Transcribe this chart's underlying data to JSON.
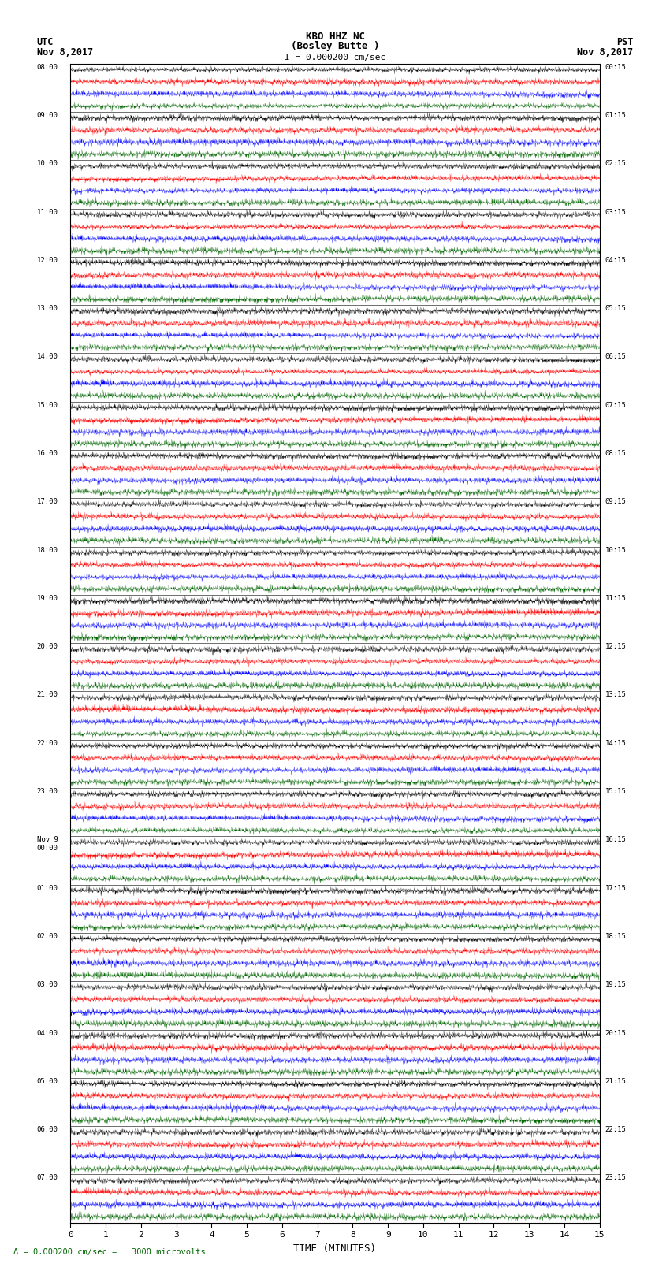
{
  "title_line1": "KBO HHZ NC",
  "title_line2": "(Bosley Butte )",
  "scale_label": "I = 0.000200 cm/sec",
  "left_header": "UTC",
  "right_header": "PST",
  "left_date": "Nov 8,2017",
  "right_date": "Nov 8,2017",
  "footer_label": "Δ = 0.000200 cm/sec =   3000 microvolts",
  "xlabel": "TIME (MINUTES)",
  "bg_color": "#ffffff",
  "plot_bg": "#ffffff",
  "left_times": [
    "08:00",
    "09:00",
    "10:00",
    "11:00",
    "12:00",
    "13:00",
    "14:00",
    "15:00",
    "16:00",
    "17:00",
    "18:00",
    "19:00",
    "20:00",
    "21:00",
    "22:00",
    "23:00",
    "Nov 9\n00:00",
    "01:00",
    "02:00",
    "03:00",
    "04:00",
    "05:00",
    "06:00",
    "07:00"
  ],
  "right_times": [
    "00:15",
    "01:15",
    "02:15",
    "03:15",
    "04:15",
    "05:15",
    "06:15",
    "07:15",
    "08:15",
    "09:15",
    "10:15",
    "11:15",
    "12:15",
    "13:15",
    "14:15",
    "15:15",
    "16:15",
    "17:15",
    "18:15",
    "19:15",
    "20:15",
    "21:15",
    "22:15",
    "23:15"
  ],
  "n_rows": 24,
  "sub_rows": 4,
  "n_cols": 1800,
  "time_minutes": 15,
  "colors": [
    "#000000",
    "#ff0000",
    "#0000ff",
    "#006400"
  ],
  "seed": 42
}
